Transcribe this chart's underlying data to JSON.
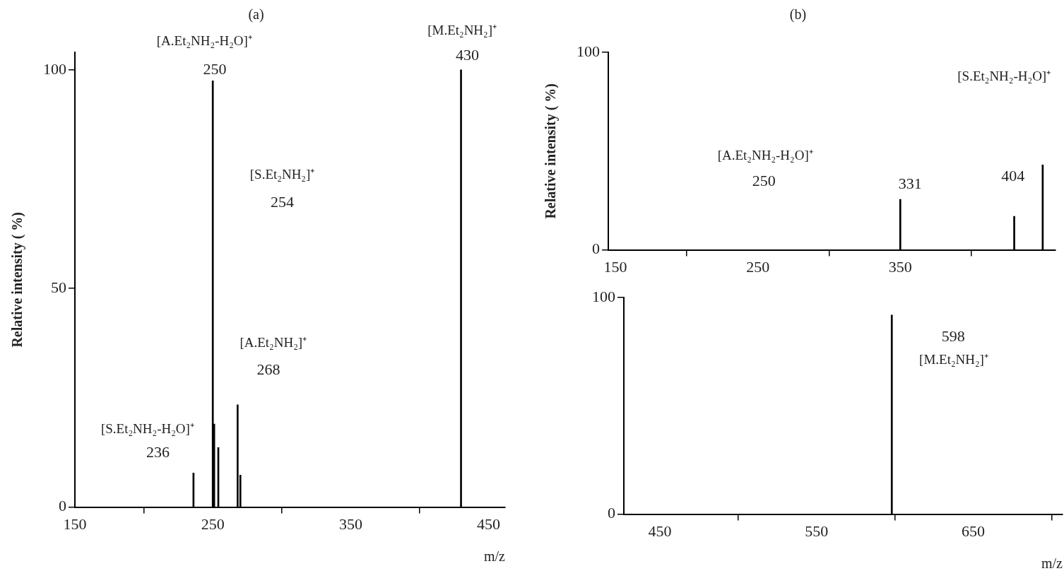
{
  "chart_data": [
    {
      "type": "bar",
      "title": "(a)",
      "xlabel": "m/z",
      "ylabel": "Relative intensity ( %)",
      "x": [
        236,
        250,
        251,
        254,
        268,
        270,
        430
      ],
      "values": [
        7.8,
        97.5,
        19,
        13.6,
        23.4,
        7.3,
        100
      ],
      "color": "#000000",
      "xlim": [
        150,
        462
      ],
      "ylim": [
        0,
        104
      ],
      "xticks": [
        150,
        250,
        350,
        450
      ],
      "yticks": [
        0,
        50,
        100
      ],
      "annotations": [
        "[A.Et₂NH₂-H₂O]⁺",
        "250",
        "[M.Et₂NH₂]⁺",
        "430",
        "[S.Et₂NH₂]⁺",
        "254",
        "[A.Et₂NH₂]⁺",
        "268",
        "[S.Et₂NH₂-H₂O]⁺",
        "236"
      ]
    },
    {
      "type": "bar",
      "title": "(b)",
      "ylabel": "Relative intensity ( %)",
      "x": [
        350,
        430,
        450
      ],
      "values": [
        25.6,
        17,
        43
      ],
      "color": "#000000",
      "xlim": [
        145,
        459
      ],
      "ylim": [
        0,
        100
      ],
      "xticks": [
        150,
        250,
        350
      ],
      "yticks": [
        0,
        100
      ],
      "annotations": [
        "[A.Et₂NH₂-H₂O]⁺",
        "250",
        "331",
        "404",
        "[S.Et₂NH₂-H₂O]⁺"
      ]
    },
    {
      "type": "bar",
      "xlabel": "m/z",
      "x": [
        598
      ],
      "values": [
        92
      ],
      "color": "#000000",
      "xlim": [
        427,
        707
      ],
      "ylim": [
        0,
        100
      ],
      "xticks": [
        450,
        550,
        650
      ],
      "yticks": [
        0,
        100
      ],
      "annotations": [
        "598",
        "[M.Et₂NH₂]⁺"
      ]
    }
  ]
}
